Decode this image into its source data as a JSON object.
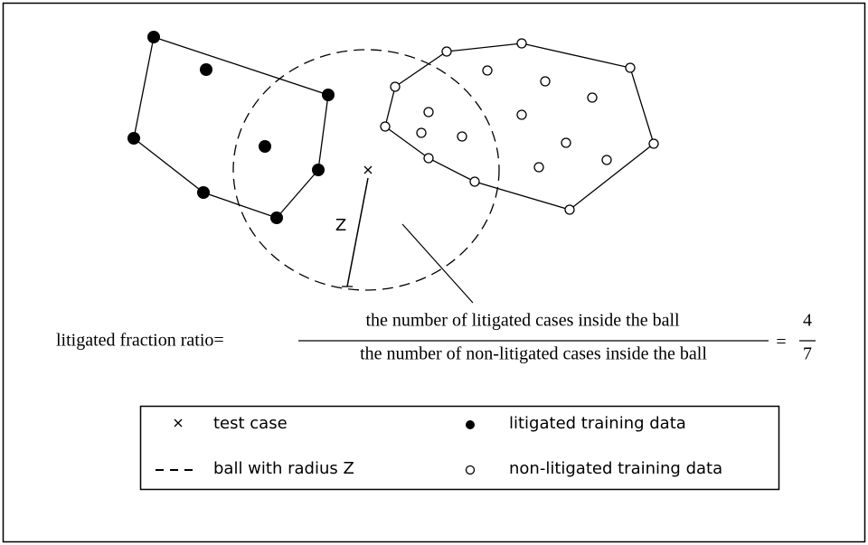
{
  "diagram": {
    "radius_label": "Z",
    "formula": {
      "lhs": "litigated fraction ratio=",
      "numerator": "the number of litigated cases inside the ball",
      "denominator": "the number of non-litigated cases inside the ball",
      "equals": "=",
      "result_numerator": "4",
      "result_denominator": "7"
    },
    "legend": {
      "items": [
        {
          "label": "test case"
        },
        {
          "label": "litigated training data"
        },
        {
          "label": "ball with radius Z"
        },
        {
          "label": "non-litigated training data"
        }
      ]
    }
  }
}
